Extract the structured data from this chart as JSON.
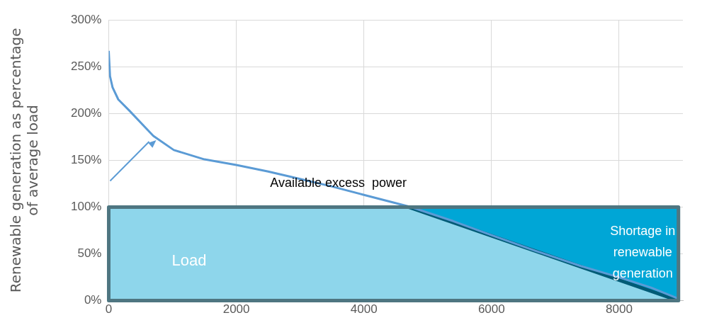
{
  "chart_data": {
    "type": "line",
    "ylabel": "Renewable generation as percentage\nof average load",
    "xlim": [
      0,
      9000
    ],
    "xticks": [
      0,
      2000,
      4000,
      6000,
      8000
    ],
    "ylim": [
      0,
      300
    ],
    "yticks": [
      {
        "value": 0,
        "label": "0%"
      },
      {
        "value": 50,
        "label": "50%"
      },
      {
        "value": 100,
        "label": "100%"
      },
      {
        "value": 150,
        "label": "150%"
      },
      {
        "value": 200,
        "label": "200%"
      },
      {
        "value": 250,
        "label": "250%"
      },
      {
        "value": 300,
        "label": "300%"
      }
    ],
    "grid": true,
    "marker": "none",
    "series": [
      {
        "type": "line",
        "color": "#5b9bd5",
        "x": [
          0,
          20,
          60,
          150,
          325,
          560,
          700,
          1020,
          1500,
          2000,
          2500,
          3000,
          3500,
          4000,
          4740,
          5400,
          6000,
          6700,
          7400,
          8000,
          8500,
          8930
        ],
        "values": [
          267,
          240,
          228,
          215,
          203,
          186,
          176,
          161,
          151,
          145,
          138,
          130,
          122,
          113,
          100,
          85,
          70,
          53,
          37,
          25,
          14,
          2
        ]
      },
      {
        "type": "area",
        "color": "#00a6d6",
        "x": [
          4700,
          8930
        ],
        "values": [
          100,
          0
        ]
      },
      {
        "type": "area",
        "color": "#8ed6eb",
        "x": [
          0,
          8930
        ],
        "values": [
          100,
          100
        ]
      }
    ],
    "annotations": [
      {
        "text": "Available excess  power",
        "x": 3600,
        "y": 125
      },
      "Load",
      "Shortage in\nrenewable\ngeneration"
    ]
  }
}
